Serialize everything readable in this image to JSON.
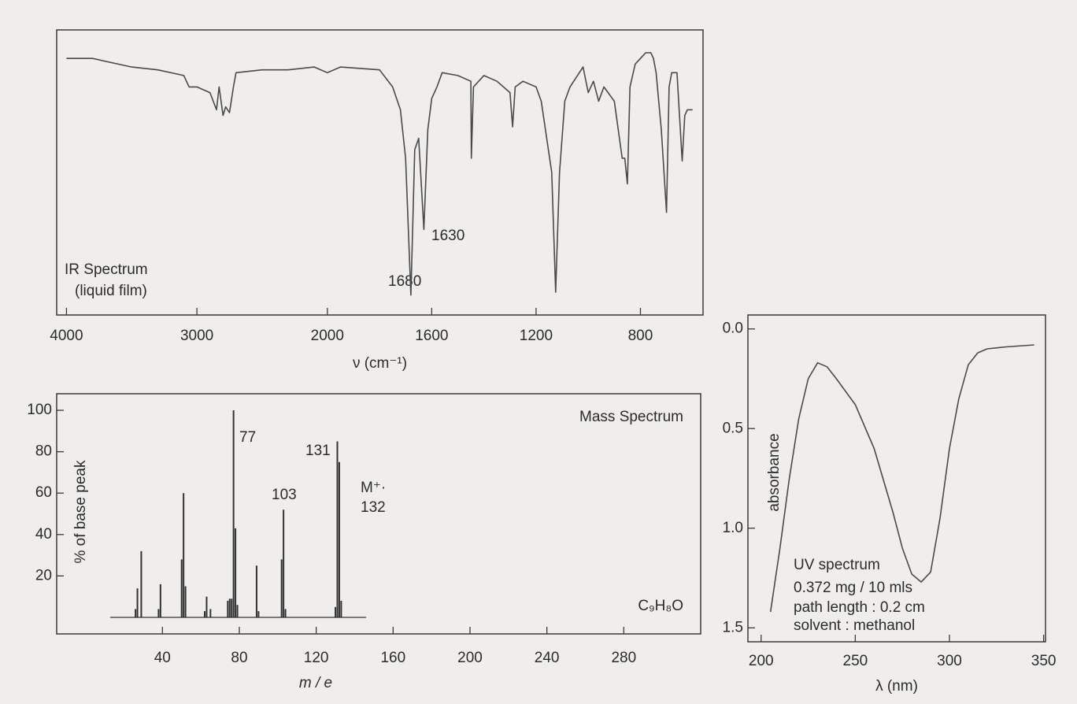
{
  "chart_data": [
    {
      "type": "line",
      "title": "IR Spectrum",
      "subtitle": "(liquid film)",
      "xlabel": "ν (cm⁻¹)",
      "color": "#4a4a4a",
      "x": [
        4000,
        3800,
        3500,
        3300,
        3100,
        3060,
        3000,
        2900,
        2850,
        2830,
        2800,
        2780,
        2750,
        2720,
        2700,
        2500,
        2300,
        2100,
        2000,
        1950,
        1800,
        1750,
        1720,
        1700,
        1680,
        1665,
        1650,
        1630,
        1615,
        1600,
        1580,
        1560,
        1500,
        1450,
        1448,
        1440,
        1400,
        1350,
        1300,
        1290,
        1280,
        1250,
        1200,
        1180,
        1140,
        1125,
        1110,
        1090,
        1070,
        1020,
        1000,
        980,
        960,
        940,
        900,
        870,
        860,
        850,
        840,
        820,
        800,
        780,
        760,
        750,
        740,
        720,
        700,
        690,
        680,
        660,
        640,
        630,
        620,
        600
      ],
      "values": [
        90,
        90,
        87,
        86,
        84,
        80,
        80,
        78,
        72,
        80,
        70,
        73,
        71,
        80,
        85,
        86,
        86,
        87,
        85,
        87,
        86,
        80,
        72,
        55,
        7,
        58,
        62,
        30,
        65,
        76,
        80,
        85,
        84,
        82,
        55,
        80,
        84,
        82,
        78,
        66,
        80,
        82,
        80,
        75,
        50,
        8,
        50,
        75,
        80,
        87,
        78,
        82,
        75,
        80,
        75,
        55,
        55,
        46,
        80,
        88,
        90,
        92,
        92,
        90,
        85,
        65,
        36,
        80,
        85,
        85,
        54,
        70,
        72,
        72
      ],
      "xlim": [
        4075,
        560
      ],
      "xbreak": 2000,
      "xticks": [
        4000,
        3000,
        2000,
        1600,
        1200,
        800
      ],
      "ylim": [
        0,
        100
      ],
      "annotations": [
        "1680",
        "1630"
      ]
    },
    {
      "type": "bar",
      "title": "Mass Spectrum",
      "formula": "C₉H₈O",
      "xlabel": "m / e",
      "ylabel": "% of base peak",
      "color": "#333333",
      "x": [
        26,
        27,
        29,
        38,
        39,
        50,
        51,
        52,
        62,
        63,
        65,
        74,
        75,
        76,
        77,
        78,
        79,
        89,
        90,
        102,
        103,
        104,
        130,
        131,
        132,
        133
      ],
      "values": [
        4,
        14,
        32,
        4,
        16,
        28,
        60,
        15,
        3,
        10,
        4,
        8,
        9,
        9,
        100,
        43,
        6,
        25,
        3,
        28,
        52,
        4,
        5,
        85,
        75,
        8
      ],
      "xlim": [
        -15,
        320
      ],
      "xticks": [
        40,
        80,
        120,
        160,
        200,
        240,
        280
      ],
      "ylim": [
        -8,
        108
      ],
      "yticks": [
        20,
        40,
        60,
        80,
        100
      ],
      "annotations": [
        "77",
        "103",
        "131",
        "M⁺·",
        "132"
      ]
    },
    {
      "type": "line",
      "xlabel": "λ (nm)",
      "ylabel": "absorbance",
      "color": "#4a4a4a",
      "x": [
        205,
        210,
        215,
        220,
        225,
        230,
        235,
        240,
        250,
        260,
        270,
        275,
        280,
        285,
        290,
        295,
        300,
        305,
        310,
        315,
        320,
        330,
        345
      ],
      "values": [
        1.42,
        1.1,
        0.75,
        0.45,
        0.25,
        0.17,
        0.19,
        0.25,
        0.38,
        0.6,
        0.92,
        1.1,
        1.23,
        1.27,
        1.22,
        0.95,
        0.6,
        0.35,
        0.18,
        0.12,
        0.1,
        0.09,
        0.08
      ],
      "xlim": [
        193,
        351
      ],
      "xticks": [
        200,
        250,
        300,
        350
      ],
      "ylim": [
        1.57,
        -0.07
      ],
      "yticks": [
        {
          "value": 0,
          "label": "0.0"
        },
        {
          "value": 0.5,
          "label": "0.5"
        },
        {
          "value": 1,
          "label": "1.0"
        },
        {
          "value": 1.5,
          "label": "1.5"
        }
      ],
      "annotations": [
        "UV spectrum",
        "0.372 mg / 10 mls",
        "path length :  0.2  cm",
        "solvent : methanol"
      ]
    }
  ]
}
